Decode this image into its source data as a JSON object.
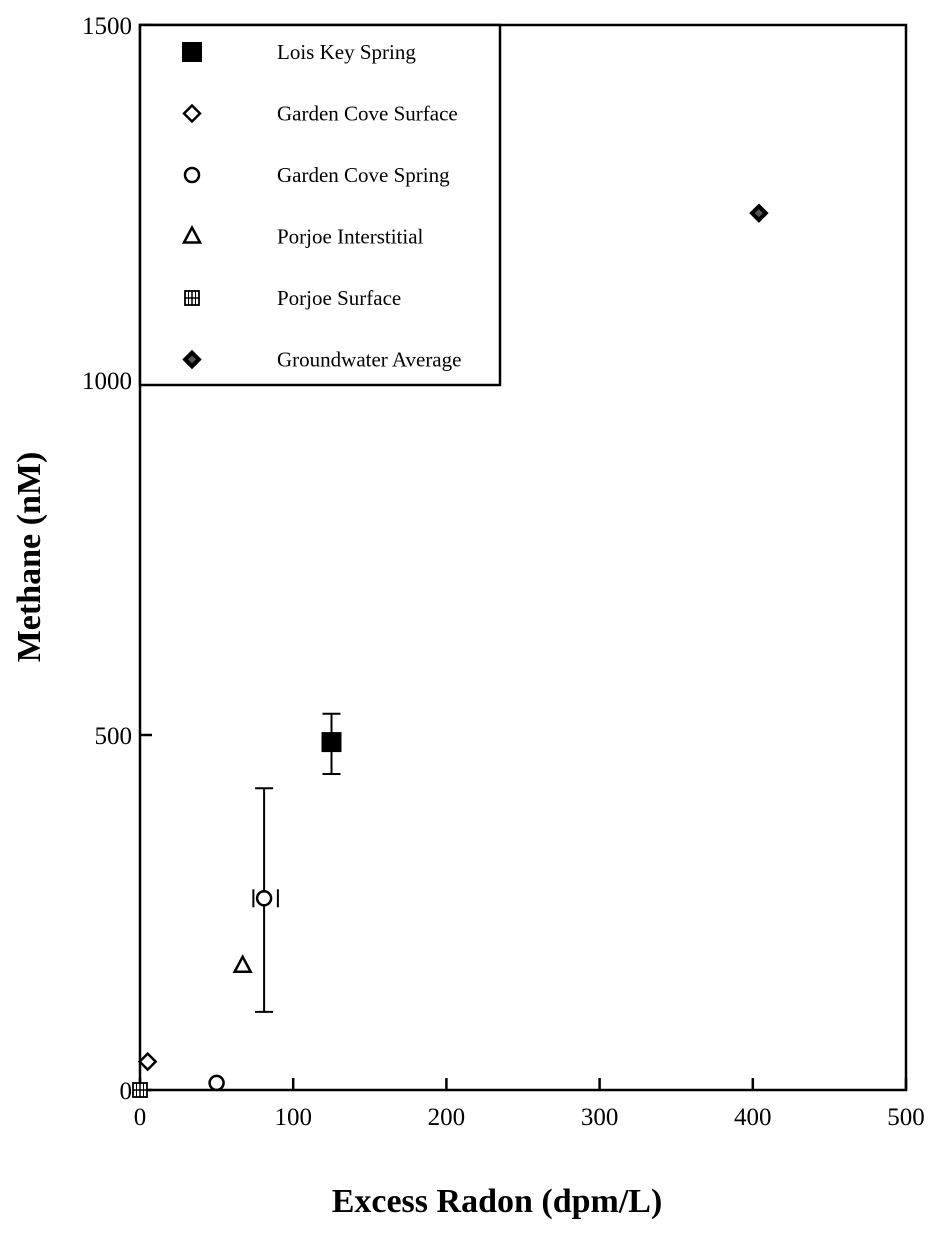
{
  "chart_data": {
    "type": "scatter",
    "title": "",
    "xlabel": "Excess Radon (dpm/L)",
    "ylabel": "Methane (nM)",
    "xlim": [
      0,
      500
    ],
    "ylim": [
      0,
      1500
    ],
    "x_ticks": [
      0,
      100,
      200,
      300,
      400,
      500
    ],
    "y_ticks": [
      0,
      500,
      1000,
      1500
    ],
    "grid": false,
    "legend_position": "top-left",
    "series": [
      {
        "name": "Lois Key Spring",
        "marker": "filled-square",
        "points": [
          {
            "x": 125,
            "y": 490,
            "y_err": [
              445,
              530
            ],
            "x_err": [
              123,
              127
            ]
          }
        ]
      },
      {
        "name": "Garden Cove Surface",
        "marker": "open-diamond",
        "points": [
          {
            "x": 5,
            "y": 40
          }
        ]
      },
      {
        "name": "Garden Cove Spring",
        "marker": "open-circle",
        "points": [
          {
            "x": 50,
            "y": 10
          },
          {
            "x": 81,
            "y": 270,
            "y_err": [
              110,
              425
            ],
            "x_err": [
              74,
              90
            ]
          }
        ]
      },
      {
        "name": "Porjoe Interstitial",
        "marker": "open-triangle",
        "points": [
          {
            "x": 67,
            "y": 175
          }
        ]
      },
      {
        "name": "Porjoe Surface",
        "marker": "crossed-square",
        "points": [
          {
            "x": 0,
            "y": 0
          }
        ]
      },
      {
        "name": "Groundwater Average",
        "marker": "filled-diamond",
        "points": [
          {
            "x": 404,
            "y": 1235
          }
        ]
      }
    ]
  }
}
